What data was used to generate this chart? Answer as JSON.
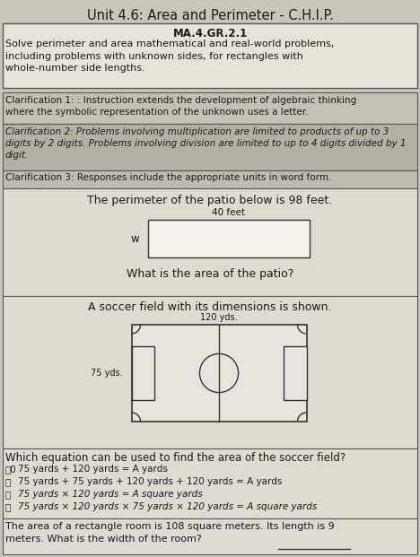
{
  "title": "Unit 4.6: Area and Perimeter - C.H.I.P.",
  "standard": "MA.4.GR.2.1",
  "standard_desc": "Solve perimeter and area mathematical and real-world problems,\nincluding problems with unknown sides, for rectangles with\nwhole-number side lengths.",
  "clarification1": "Clarification 1: : Instruction extends the development of algebraic thinking\nwhere the symbolic representation of the unknown uses a letter.",
  "clarification2": "Clarification 2: Problems involving multiplication are limited to products of up to 3\ndigits by 2 digits. Problems involving division are limited to up to 4 digits divided by 1\ndigit.",
  "clarification3": "Clarification 3: Responses include the appropriate units in word form.",
  "problem1_intro": "The perimeter of the patio below is 98 feet.",
  "patio_top_label": "40 feet",
  "patio_left_label": "w",
  "problem1_question": "What is the area of the patio?",
  "problem2_intro": "A soccer field with its dimensions is shown.",
  "soccer_top_label": "120 yds.",
  "soccer_left_label": "75 yds.",
  "which_equation": "Which equation can be used to find the area of the soccer field?",
  "option_a": "A  75 yards + 120 yards = A yards",
  "option_b": "B  75 yards + 75 yards + 120 yards + 120 yards = A yards",
  "option_c": "C  75 yards × 120 yards = A square yards",
  "option_d": "D  75 yards × 120 yards × 75 yards × 120 yards = A square yards",
  "problem3": "The area of a rectangle room is 108 square meters. Its length is 9\nmeters. What is the width of the room?",
  "bg_color": "#cac5bb",
  "std_box_bg": "#e8e3d8",
  "clar1_bg": "#c5c0b4",
  "clar2_bg": "#b5b0a4",
  "clar3_bg": "#c0bbb0",
  "problem_box_bg": "#e0dbd0",
  "patio_rect_bg": "#f0ece4",
  "soccer_field_bg": "#e8e4dc",
  "text_color": "#1a1a1a"
}
